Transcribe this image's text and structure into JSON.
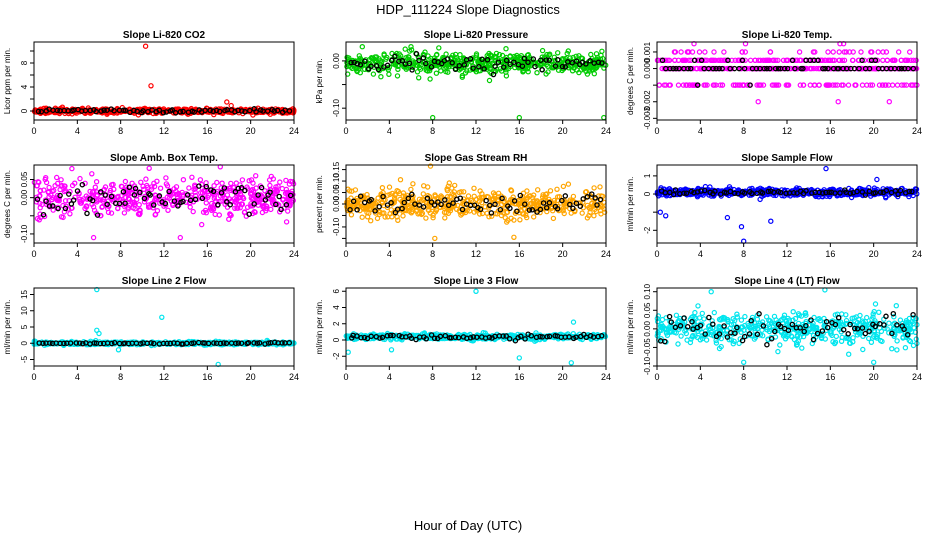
{
  "figure": {
    "title": "HDP_111224  Slope Diagnostics",
    "xlabel": "Hour of Day (UTC)"
  },
  "chart_data": [
    {
      "type": "scatter",
      "title": "Slope Li-820 CO2",
      "ylabel": "Licor ppm per min.",
      "color": "#ff0000",
      "xlim": [
        0,
        24
      ],
      "ylim": [
        -1.5,
        11.5
      ],
      "xticks": [
        0,
        4,
        8,
        12,
        16,
        20,
        24
      ],
      "yticks": [
        0,
        2,
        4,
        6,
        8,
        10
      ],
      "ytick_labels": [
        "0",
        "",
        "4",
        "",
        "8",
        ""
      ],
      "baseline": 0,
      "spread": 0.35,
      "black_spread": 0.3,
      "outliers": [
        [
          10.3,
          10.8
        ],
        [
          10.8,
          4.2
        ],
        [
          17.8,
          1.5
        ],
        [
          18.2,
          0.9
        ],
        [
          16.6,
          -0.6
        ]
      ]
    },
    {
      "type": "scatter",
      "title": "Slope Li-820 Pressure",
      "ylabel": "kPa per min.",
      "color": "#00cc00",
      "xlim": [
        0,
        24
      ],
      "ylim": [
        -0.125,
        0.04
      ],
      "xticks": [
        0,
        4,
        8,
        12,
        16,
        20,
        24
      ],
      "yticks": [
        -0.1,
        -0.05,
        0.0
      ],
      "ytick_labels": [
        "-0.10",
        "",
        "0.00"
      ],
      "baseline": -0.005,
      "spread": 0.022,
      "black_spread": 0.015,
      "outliers": [
        [
          8.0,
          -0.12
        ],
        [
          16.0,
          -0.12
        ],
        [
          23.8,
          -0.12
        ],
        [
          1.5,
          0.03
        ],
        [
          6.0,
          0.03
        ]
      ]
    },
    {
      "type": "scatter",
      "title": "Slope Li-820 Temp.",
      "ylabel": "degrees C per min.",
      "color": "#ff00ff",
      "xlim": [
        0,
        24
      ],
      "ylim": [
        -0.0031,
        0.0016
      ],
      "xticks": [
        0,
        4,
        8,
        12,
        16,
        20,
        24
      ],
      "yticks": [
        -0.003,
        -0.002,
        -0.001,
        0.0,
        0.001
      ],
      "ytick_labels": [
        "-0.003",
        "-0.002",
        "",
        "0.000",
        "0.001"
      ],
      "discrete_levels": [
        -0.003,
        -0.002,
        -0.001,
        0.0,
        0.0005,
        0.001,
        0.0015
      ],
      "baseline": 0,
      "spread": 0.001,
      "black_spread": 0.0005,
      "outliers": []
    },
    {
      "type": "scatter",
      "title": "Slope Amb. Box Temp.",
      "ylabel": "degrees C per min.",
      "color": "#ff00ff",
      "xlim": [
        0,
        24
      ],
      "ylim": [
        -0.125,
        0.09
      ],
      "xticks": [
        0,
        4,
        8,
        12,
        16,
        20,
        24
      ],
      "yticks": [
        -0.1,
        -0.05,
        0.0,
        0.05
      ],
      "ytick_labels": [
        "-0.10",
        "",
        "0.00",
        "0.05"
      ],
      "baseline": 0,
      "spread": 0.045,
      "black_spread": 0.04,
      "outliers": [
        [
          3.5,
          0.08
        ],
        [
          5.5,
          -0.11
        ],
        [
          13.5,
          -0.11
        ],
        [
          17.2,
          0.085
        ]
      ]
    },
    {
      "type": "scatter",
      "title": "Slope Gas Stream RH",
      "ylabel": "percent per min.",
      "color": "#ffa500",
      "xlim": [
        0,
        24
      ],
      "ylim": [
        -0.17,
        0.17
      ],
      "xticks": [
        0,
        4,
        8,
        12,
        16,
        20,
        24
      ],
      "yticks": [
        -0.15,
        -0.1,
        -0.05,
        0.0,
        0.05,
        0.1,
        0.15
      ],
      "ytick_labels": [
        "",
        "-0.10",
        "",
        "0.00",
        "0.05",
        "0.10",
        "0.15"
      ],
      "baseline": 0,
      "spread": 0.06,
      "black_spread": 0.045,
      "outliers": [
        [
          7.8,
          0.165
        ],
        [
          8.2,
          -0.15
        ],
        [
          15.5,
          -0.145
        ]
      ]
    },
    {
      "type": "scatter",
      "title": "Slope Sample Flow",
      "ylabel": "ml/min per min.",
      "color": "#0000ff",
      "xlim": [
        0,
        24
      ],
      "ylim": [
        -2.7,
        1.6
      ],
      "xticks": [
        0,
        4,
        8,
        12,
        16,
        20,
        24
      ],
      "yticks": [
        -2,
        -1,
        0,
        1
      ],
      "ytick_labels": [
        "-2",
        "",
        "0",
        "1"
      ],
      "baseline": 0.1,
      "spread": 0.2,
      "black_spread": 0.12,
      "outliers": [
        [
          15.6,
          1.4
        ],
        [
          8.0,
          -2.6
        ],
        [
          7.8,
          -1.8
        ],
        [
          6.5,
          -1.3
        ],
        [
          10.5,
          -1.5
        ],
        [
          20.3,
          0.8
        ],
        [
          0.3,
          -1.0
        ],
        [
          0.8,
          -1.2
        ]
      ]
    },
    {
      "type": "scatter",
      "title": "Slope Line 2 Flow",
      "ylabel": "ml/min per min.",
      "color": "#00e5ee",
      "xlim": [
        0,
        24
      ],
      "ylim": [
        -7,
        17
      ],
      "xticks": [
        0,
        4,
        8,
        12,
        16,
        20,
        24
      ],
      "yticks": [
        -5,
        0,
        5,
        10,
        15
      ],
      "ytick_labels": [
        "-5",
        "0",
        "5",
        "10",
        "15"
      ],
      "baseline": 0,
      "spread": 0.4,
      "black_spread": 0.2,
      "outliers": [
        [
          5.8,
          16.5
        ],
        [
          5.8,
          4.0
        ],
        [
          6.0,
          3.0
        ],
        [
          11.8,
          8.0
        ],
        [
          17.0,
          -6.5
        ],
        [
          7.8,
          -2.0
        ]
      ]
    },
    {
      "type": "scatter",
      "title": "Slope Line 3 Flow",
      "ylabel": "ml/min per min.",
      "color": "#00e5ee",
      "xlim": [
        0,
        24
      ],
      "ylim": [
        -3.2,
        6.4
      ],
      "xticks": [
        0,
        4,
        8,
        12,
        16,
        20,
        24
      ],
      "yticks": [
        -2,
        0,
        2,
        4,
        6
      ],
      "ytick_labels": [
        "-2",
        "0",
        "2",
        "4",
        "6"
      ],
      "baseline": 0.4,
      "spread": 0.3,
      "black_spread": 0.3,
      "outliers": [
        [
          12.0,
          6.0
        ],
        [
          16.0,
          -2.2
        ],
        [
          20.8,
          -2.8
        ],
        [
          21.0,
          2.2
        ],
        [
          0.2,
          -1.5
        ],
        [
          4.2,
          -1.2
        ]
      ]
    },
    {
      "type": "scatter",
      "title": "Slope Line 4 (LT) Flow",
      "ylabel": "ml/min per min.",
      "color": "#00e5ee",
      "xlim": [
        0,
        24
      ],
      "ylim": [
        -0.1,
        0.11
      ],
      "xticks": [
        0,
        4,
        8,
        12,
        16,
        20,
        24
      ],
      "yticks": [
        -0.1,
        -0.05,
        0.0,
        0.05,
        0.1
      ],
      "ytick_labels": [
        "-0.10",
        "-0.05",
        "0.00",
        "0.05",
        "0.10"
      ],
      "baseline": 0,
      "spread": 0.04,
      "black_spread": 0.035,
      "outliers": [
        [
          5.0,
          0.1
        ],
        [
          15.5,
          0.105
        ],
        [
          8.0,
          -0.09
        ],
        [
          20.0,
          -0.09
        ]
      ]
    }
  ]
}
